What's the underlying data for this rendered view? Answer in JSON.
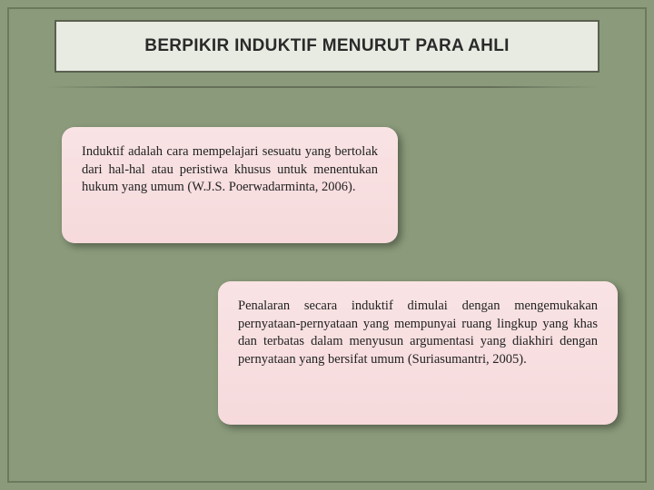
{
  "slide": {
    "background_color": "#8a9a7a",
    "frame_color": "#6b7a5c",
    "title_box": {
      "background": "#e8ebe2",
      "border_color": "#5a6050",
      "text": "BERPIKIR INDUKTIF MENURUT PARA AHLI",
      "font_size": 19,
      "font_weight": "bold"
    },
    "cards": {
      "card1": {
        "text": "Induktif adalah cara mempelajari sesuatu yang bertolak dari hal-hal atau peristiwa khusus untuk menentukan hukum yang umum (W.J.S. Poerwadarminta, 2006).",
        "background": "#f9e3e4",
        "font_family": "serif",
        "font_size": 14.5
      },
      "card2": {
        "text": "Penalaran secara induktif dimulai dengan mengemukakan pernyataan-pernyataan yang mempunyai ruang lingkup yang khas dan terbatas dalam menyusun argumentasi yang diakhiri dengan pernyataan yang bersifat umum (Suriasumantri, 2005).",
        "background": "#f9e3e4",
        "font_family": "serif",
        "font_size": 14.5
      }
    }
  }
}
